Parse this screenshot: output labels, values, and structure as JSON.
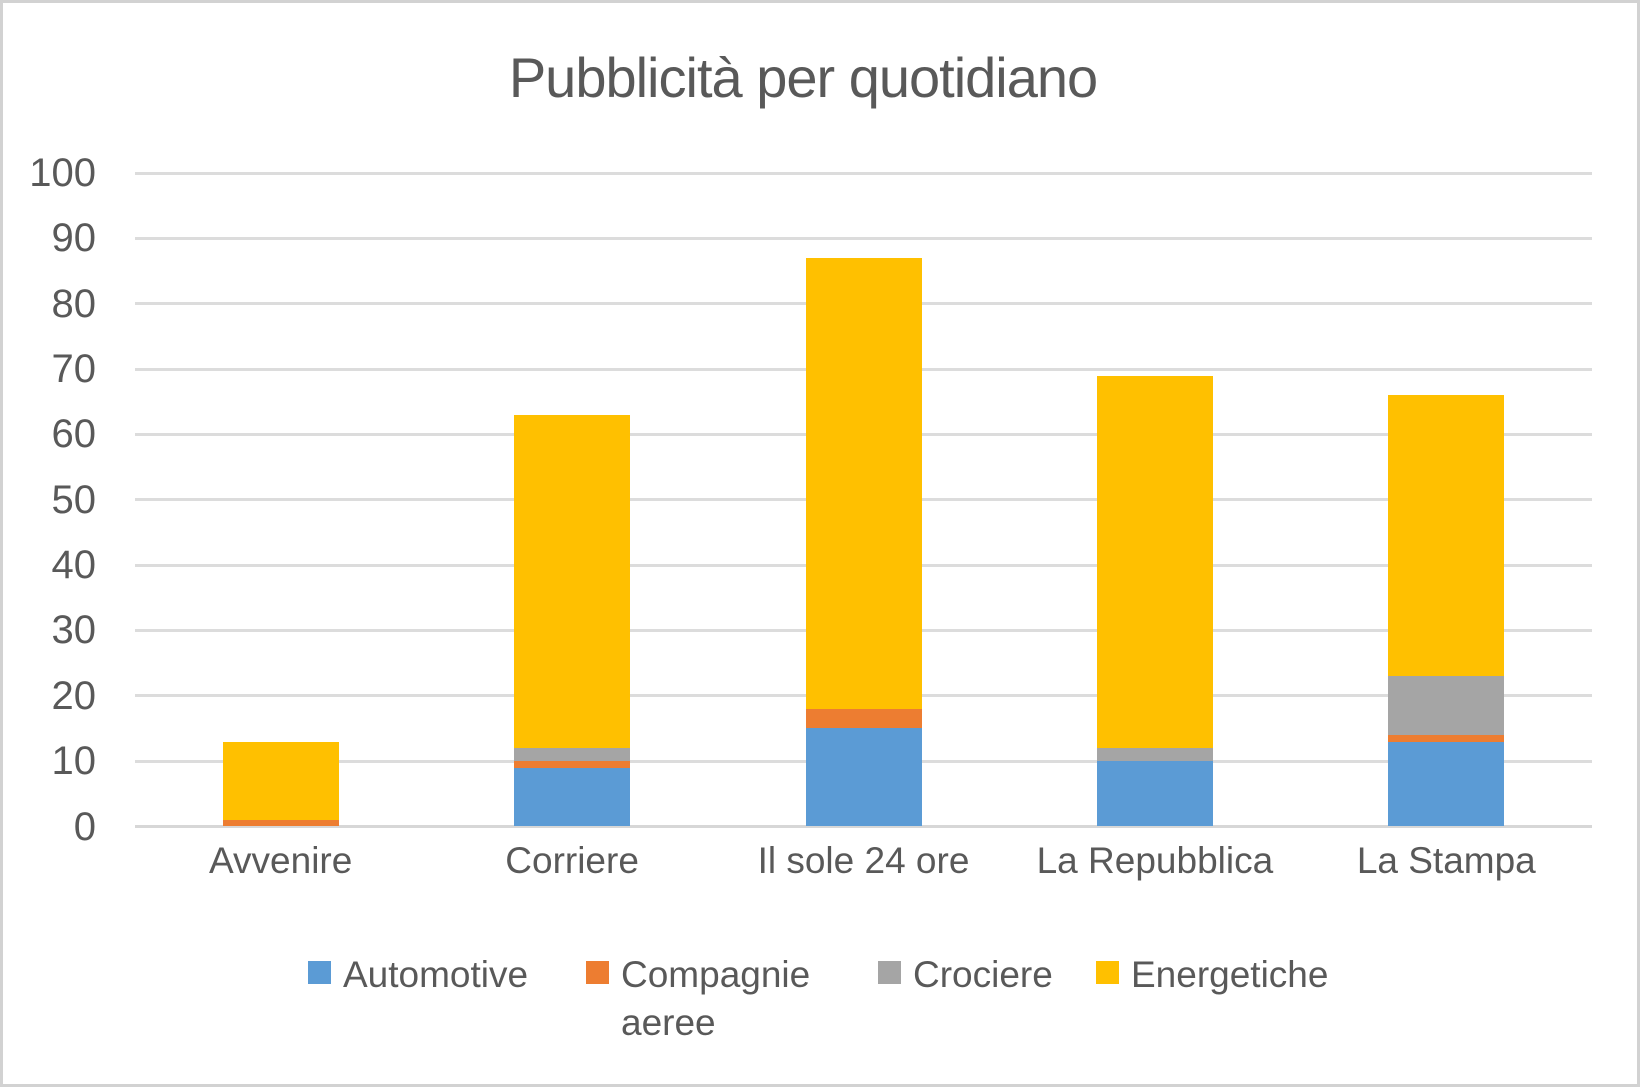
{
  "title": "Pubblicità per quotidiano",
  "colors": {
    "text": "#595959",
    "gridline": "#dcdcdc",
    "background": "#ffffff",
    "canvas_border": "#d2d2d2",
    "series_automotive": "#5B9BD5",
    "series_compagnie_aeree": "#ED7D31",
    "series_crociere": "#A5A5A5",
    "series_energetiche": "#FFC000"
  },
  "chart_data": {
    "type": "bar",
    "stacked": true,
    "title": "Pubblicità per quotidiano",
    "categories": [
      "Avvenire",
      "Corriere",
      "Il sole 24 ore",
      "La Repubblica",
      "La Stampa"
    ],
    "series": [
      {
        "name": "Automotive",
        "color": "#5B9BD5",
        "values": [
          0,
          9,
          15,
          10,
          13
        ]
      },
      {
        "name": "Compagnie aeree",
        "color": "#ED7D31",
        "values": [
          1,
          1,
          3,
          0,
          1
        ]
      },
      {
        "name": "Crociere",
        "color": "#A5A5A5",
        "values": [
          0,
          2,
          0,
          2,
          9
        ]
      },
      {
        "name": "Energetiche",
        "color": "#FFC000",
        "values": [
          12,
          51,
          69,
          57,
          43
        ]
      }
    ],
    "stack_totals": [
      13,
      63,
      87,
      69,
      66
    ],
    "xlabel": "",
    "ylabel": "",
    "ylim": [
      0,
      100
    ],
    "ytick_step": 10,
    "yticks": [
      0,
      10,
      20,
      30,
      40,
      50,
      60,
      70,
      80,
      90,
      100
    ],
    "grid": true,
    "legend_position": "bottom",
    "legend_entries": [
      "Automotive",
      "Compagnie aeree",
      "Crociere",
      "Energetiche"
    ]
  }
}
